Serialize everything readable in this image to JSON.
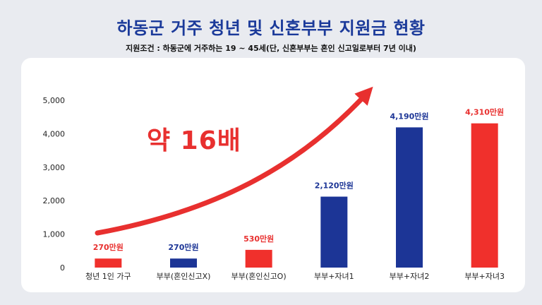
{
  "header": {
    "title": "하동군 거주 청년 및 신혼부부 지원금 현황",
    "subtitle": "지원조건 : 하동군에 거주하는 19 ~ 45세(단, 신혼부부는 혼인 신고일로부터 7년 이내)"
  },
  "callout": "약 16배",
  "colors": {
    "red": "#f0302c",
    "blue": "#1c3596",
    "accent_text": "#e8302f"
  },
  "chart_data": {
    "type": "bar",
    "title": "하동군 거주 청년 및 신혼부부 지원금 현황",
    "categories": [
      "청년 1인 가구",
      "부부(혼인신고X)",
      "부부(혼인신고O)",
      "부부+자녀1",
      "부부+자녀2",
      "부부+자녀3"
    ],
    "values": [
      270,
      270,
      530,
      2120,
      4190,
      4310
    ],
    "data_labels": [
      "270만원",
      "270만원",
      "530만원",
      "2,120만원",
      "4,190만원",
      "4,310만원"
    ],
    "bar_colors": [
      "#f0302c",
      "#1c3596",
      "#f0302c",
      "#1c3596",
      "#1c3596",
      "#f0302c"
    ],
    "label_colors": [
      "#e8302f",
      "#1c3596",
      "#e8302f",
      "#1c3596",
      "#1c3596",
      "#e8302f"
    ],
    "yticks": [
      "0",
      "1,000",
      "2,000",
      "3,000",
      "4,000",
      "5,000"
    ],
    "ytick_values": [
      0,
      1000,
      2000,
      3000,
      4000,
      5000
    ],
    "ylim": [
      0,
      5000
    ],
    "xlabel": "",
    "ylabel": "",
    "grid": false,
    "legend": "none"
  }
}
